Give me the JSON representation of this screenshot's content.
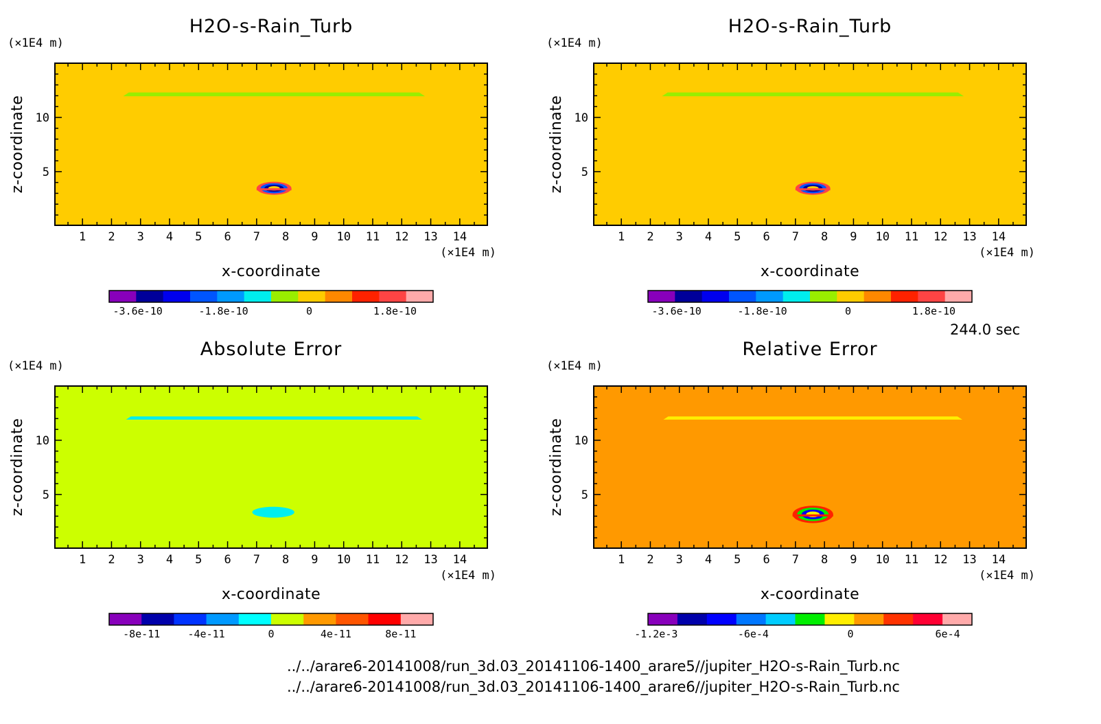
{
  "time_label": "244.0 sec",
  "file_paths": [
    "../../arare6-20141008/run_3d.03_20141106-1400_arare5//jupiter_H2O-s-Rain_Turb.nc",
    "../../arare6-20141008/run_3d.03_20141106-1400_arare6//jupiter_H2O-s-Rain_Turb.nc"
  ],
  "chart_data": [
    {
      "type": "heatmap",
      "title": "H2O-s-Rain_Turb",
      "xlabel": "x-coordinate",
      "ylabel": "z-coordinate",
      "x_unit": "(×1E4 m)",
      "y_unit": "(×1E4 m)",
      "xlim": [
        0.05,
        14.95
      ],
      "ylim": [
        0.05,
        15.0
      ],
      "x_ticks": [
        1,
        2,
        3,
        4,
        5,
        6,
        7,
        8,
        9,
        10,
        11,
        12,
        13,
        14
      ],
      "y_ticks": [
        5,
        10
      ],
      "background_color": "#ffcc00",
      "features": [
        {
          "kind": "band",
          "x": [
            2.4,
            12.8
          ],
          "z": [
            11.95,
            12.3
          ],
          "color": "#99ee00"
        },
        {
          "kind": "blob",
          "x": [
            7.0,
            8.2
          ],
          "z": [
            3.4,
            4.0
          ],
          "colors": [
            "#ff4444",
            "#0055ff",
            "#000099",
            "#ffcc00"
          ]
        }
      ],
      "colorbar": {
        "range": [
          -4.2e-10,
          2.6e-10
        ],
        "colors": [
          "#8800bb",
          "#000099",
          "#0000ee",
          "#0055ff",
          "#0099ff",
          "#00eeee",
          "#99ee00",
          "#ffcc00",
          "#ff8800",
          "#ff2200",
          "#ff4444",
          "#ffaaaa"
        ],
        "tick_values": [
          -3.6e-10,
          -1.8e-10,
          0,
          1.8e-10
        ],
        "tick_labels": [
          "-3.6e-10",
          "-1.8e-10",
          "0",
          "1.8e-10"
        ]
      }
    },
    {
      "type": "heatmap",
      "title": "H2O-s-Rain_Turb",
      "xlabel": "x-coordinate",
      "ylabel": "z-coordinate",
      "x_unit": "(×1E4 m)",
      "y_unit": "(×1E4 m)",
      "xlim": [
        0.05,
        14.95
      ],
      "ylim": [
        0.05,
        15.0
      ],
      "x_ticks": [
        1,
        2,
        3,
        4,
        5,
        6,
        7,
        8,
        9,
        10,
        11,
        12,
        13,
        14
      ],
      "y_ticks": [
        5,
        10
      ],
      "background_color": "#ffcc00",
      "features": [
        {
          "kind": "band",
          "x": [
            2.4,
            12.8
          ],
          "z": [
            11.95,
            12.3
          ],
          "color": "#99ee00"
        },
        {
          "kind": "blob",
          "x": [
            7.0,
            8.2
          ],
          "z": [
            3.4,
            4.0
          ],
          "colors": [
            "#ff4444",
            "#0055ff",
            "#000099",
            "#ffcc00"
          ]
        }
      ],
      "colorbar": {
        "range": [
          -4.2e-10,
          2.6e-10
        ],
        "colors": [
          "#8800bb",
          "#000099",
          "#0000ee",
          "#0055ff",
          "#0099ff",
          "#00eeee",
          "#99ee00",
          "#ffcc00",
          "#ff8800",
          "#ff2200",
          "#ff4444",
          "#ffaaaa"
        ],
        "tick_values": [
          -3.6e-10,
          -1.8e-10,
          0,
          1.8e-10
        ],
        "tick_labels": [
          "-3.6e-10",
          "-1.8e-10",
          "0",
          "1.8e-10"
        ]
      }
    },
    {
      "type": "heatmap",
      "title": "Absolute Error",
      "xlabel": "x-coordinate",
      "ylabel": "z-coordinate",
      "x_unit": "(×1E4 m)",
      "y_unit": "(×1E4 m)",
      "xlim": [
        0.05,
        14.95
      ],
      "ylim": [
        0.05,
        15.0
      ],
      "x_ticks": [
        1,
        2,
        3,
        4,
        5,
        6,
        7,
        8,
        9,
        10,
        11,
        12,
        13,
        14
      ],
      "y_ticks": [
        5,
        10
      ],
      "background_color": "#ccff00",
      "features": [
        {
          "kind": "band",
          "x": [
            2.5,
            12.7
          ],
          "z": [
            11.9,
            12.2
          ],
          "color": "#00eeee"
        },
        {
          "kind": "blob",
          "x": [
            6.85,
            8.3
          ],
          "z": [
            3.3,
            3.8
          ],
          "colors": [
            "#00eeee"
          ]
        }
      ],
      "colorbar": {
        "range": [
          -1e-10,
          1e-10
        ],
        "colors": [
          "#8800bb",
          "#0000aa",
          "#0033ff",
          "#0099ff",
          "#00ffff",
          "#ccff00",
          "#ff9900",
          "#ff5500",
          "#ff0000",
          "#ffaaaa"
        ],
        "tick_values": [
          -8e-11,
          -4e-11,
          0,
          4e-11,
          8e-11
        ],
        "tick_labels": [
          "-8e-11",
          "-4e-11",
          "0",
          "4e-11",
          "8e-11"
        ]
      }
    },
    {
      "type": "heatmap",
      "title": "Relative Error",
      "xlabel": "x-coordinate",
      "ylabel": "z-coordinate",
      "x_unit": "(×1E4 m)",
      "y_unit": "(×1E4 m)",
      "xlim": [
        0.05,
        14.95
      ],
      "ylim": [
        0.05,
        15.0
      ],
      "x_ticks": [
        1,
        2,
        3,
        4,
        5,
        6,
        7,
        8,
        9,
        10,
        11,
        12,
        13,
        14
      ],
      "y_ticks": [
        5,
        10
      ],
      "background_color": "#ff9900",
      "features": [
        {
          "kind": "band",
          "x": [
            2.45,
            12.75
          ],
          "z": [
            11.9,
            12.2
          ],
          "color": "#ffee00"
        },
        {
          "kind": "blob",
          "x": [
            6.9,
            8.3
          ],
          "z": [
            3.1,
            3.9
          ],
          "colors": [
            "#ff2200",
            "#00ee00",
            "#0000ee",
            "#ffee00"
          ]
        }
      ],
      "colorbar": {
        "range": [
          -0.00125,
          0.00075
        ],
        "colors": [
          "#8800bb",
          "#0000aa",
          "#0000ff",
          "#0077ff",
          "#00ccff",
          "#00ee00",
          "#ffee00",
          "#ff9900",
          "#ff3300",
          "#ff0033",
          "#ffaaaa"
        ],
        "tick_values": [
          -0.0012,
          -0.0006,
          0,
          0.0006
        ],
        "tick_labels": [
          "-1.2e-3",
          "-6e-4",
          "0",
          "6e-4"
        ]
      }
    }
  ]
}
